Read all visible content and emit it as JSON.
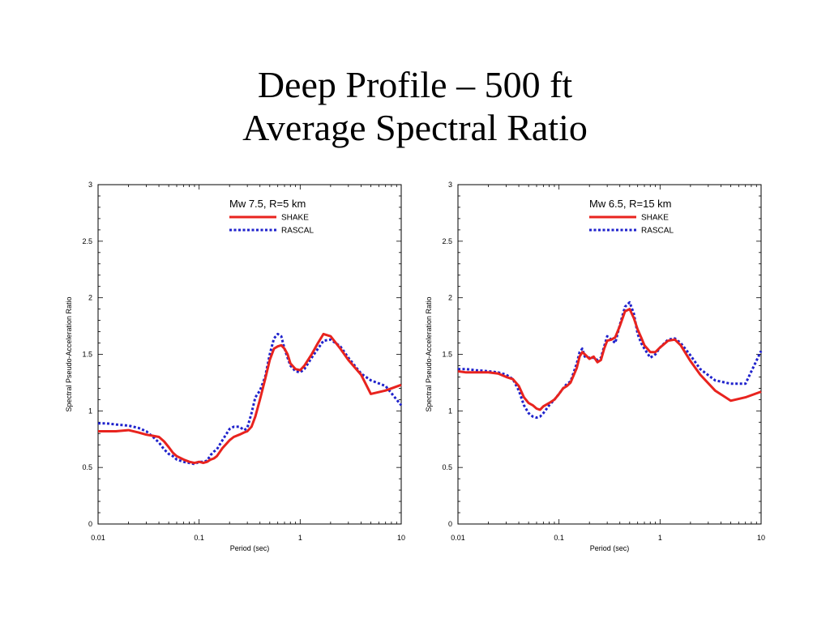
{
  "slide": {
    "title_line1": "Deep Profile – 500 ft",
    "title_line2": "Average Spectral Ratio"
  },
  "chart_data": [
    {
      "type": "line",
      "title": "Mw 7.5, R=5 km",
      "xlabel": "Period (sec)",
      "ylabel": "Spectral Pseudo-Acceleration Ratio",
      "xscale": "log",
      "xlim": [
        0.01,
        10
      ],
      "ylim": [
        0,
        3
      ],
      "xticks": [
        0.01,
        0.1,
        1,
        10
      ],
      "xtick_labels": [
        "0.01",
        "0.1",
        "1",
        "10"
      ],
      "yticks": [
        0,
        0.5,
        1,
        1.5,
        2,
        2.5,
        3
      ],
      "ytick_labels": [
        "0",
        "0.5",
        "1",
        "1.5",
        "2",
        "2.5",
        "3"
      ],
      "legend_position": "top-right",
      "grid": false,
      "series": [
        {
          "name": "SHAKE",
          "color": "#e8231e",
          "style": "solid",
          "x": [
            0.01,
            0.012,
            0.015,
            0.02,
            0.025,
            0.03,
            0.035,
            0.04,
            0.045,
            0.05,
            0.055,
            0.06,
            0.07,
            0.08,
            0.09,
            0.1,
            0.11,
            0.12,
            0.13,
            0.14,
            0.15,
            0.17,
            0.2,
            0.22,
            0.25,
            0.28,
            0.3,
            0.33,
            0.36,
            0.4,
            0.45,
            0.5,
            0.55,
            0.6,
            0.65,
            0.7,
            0.75,
            0.8,
            0.9,
            1.0,
            1.1,
            1.3,
            1.5,
            1.7,
            2.0,
            2.5,
            3.0,
            4.0,
            5.0,
            7.0,
            10.0
          ],
          "y": [
            0.82,
            0.82,
            0.82,
            0.83,
            0.81,
            0.79,
            0.78,
            0.77,
            0.73,
            0.68,
            0.63,
            0.6,
            0.57,
            0.55,
            0.54,
            0.55,
            0.54,
            0.55,
            0.57,
            0.58,
            0.6,
            0.67,
            0.74,
            0.77,
            0.79,
            0.81,
            0.82,
            0.86,
            0.95,
            1.1,
            1.28,
            1.45,
            1.55,
            1.57,
            1.58,
            1.55,
            1.5,
            1.42,
            1.37,
            1.36,
            1.4,
            1.5,
            1.6,
            1.68,
            1.66,
            1.55,
            1.45,
            1.32,
            1.15,
            1.18,
            1.23
          ]
        },
        {
          "name": "RASCAL",
          "color": "#1f22cc",
          "style": "dotted",
          "x": [
            0.01,
            0.012,
            0.015,
            0.02,
            0.025,
            0.03,
            0.035,
            0.04,
            0.045,
            0.05,
            0.055,
            0.06,
            0.07,
            0.08,
            0.09,
            0.1,
            0.11,
            0.12,
            0.13,
            0.14,
            0.15,
            0.17,
            0.2,
            0.22,
            0.25,
            0.28,
            0.3,
            0.33,
            0.36,
            0.4,
            0.45,
            0.5,
            0.55,
            0.6,
            0.65,
            0.7,
            0.75,
            0.8,
            0.9,
            1.0,
            1.1,
            1.3,
            1.5,
            1.7,
            2.0,
            2.5,
            3.0,
            4.0,
            5.0,
            7.0,
            10.0
          ],
          "y": [
            0.89,
            0.89,
            0.88,
            0.87,
            0.85,
            0.82,
            0.77,
            0.72,
            0.66,
            0.62,
            0.6,
            0.57,
            0.55,
            0.54,
            0.53,
            0.55,
            0.55,
            0.56,
            0.61,
            0.64,
            0.66,
            0.74,
            0.84,
            0.86,
            0.86,
            0.83,
            0.85,
            0.98,
            1.12,
            1.18,
            1.3,
            1.5,
            1.64,
            1.68,
            1.66,
            1.55,
            1.47,
            1.4,
            1.35,
            1.34,
            1.37,
            1.47,
            1.55,
            1.62,
            1.63,
            1.57,
            1.47,
            1.33,
            1.27,
            1.22,
            1.05
          ]
        }
      ]
    },
    {
      "type": "line",
      "title": "Mw 6.5, R=15 km",
      "xlabel": "Period (sec)",
      "ylabel": "Spectral Pseudo-Acceleration Ratio",
      "xscale": "log",
      "xlim": [
        0.01,
        10
      ],
      "ylim": [
        0,
        3
      ],
      "xticks": [
        0.01,
        0.1,
        1,
        10
      ],
      "xtick_labels": [
        "0.01",
        "0.1",
        "1",
        "10"
      ],
      "yticks": [
        0,
        0.5,
        1,
        1.5,
        2,
        2.5,
        3
      ],
      "ytick_labels": [
        "0",
        "0.5",
        "1",
        "1.5",
        "2",
        "2.5",
        "3"
      ],
      "legend_position": "top-right",
      "grid": false,
      "series": [
        {
          "name": "SHAKE",
          "color": "#e8231e",
          "style": "solid",
          "x": [
            0.01,
            0.012,
            0.015,
            0.02,
            0.025,
            0.03,
            0.035,
            0.04,
            0.045,
            0.05,
            0.055,
            0.06,
            0.065,
            0.07,
            0.08,
            0.09,
            0.1,
            0.11,
            0.12,
            0.13,
            0.15,
            0.16,
            0.17,
            0.18,
            0.2,
            0.22,
            0.24,
            0.26,
            0.28,
            0.3,
            0.33,
            0.36,
            0.4,
            0.45,
            0.5,
            0.55,
            0.6,
            0.65,
            0.7,
            0.8,
            0.9,
            1.0,
            1.2,
            1.4,
            1.6,
            2.0,
            2.5,
            3.5,
            5.0,
            7.0,
            10.0
          ],
          "y": [
            1.35,
            1.34,
            1.34,
            1.34,
            1.33,
            1.3,
            1.28,
            1.22,
            1.12,
            1.07,
            1.05,
            1.02,
            1.01,
            1.04,
            1.07,
            1.1,
            1.15,
            1.2,
            1.22,
            1.25,
            1.38,
            1.48,
            1.52,
            1.5,
            1.46,
            1.48,
            1.43,
            1.45,
            1.55,
            1.62,
            1.63,
            1.65,
            1.75,
            1.88,
            1.9,
            1.82,
            1.72,
            1.65,
            1.58,
            1.52,
            1.52,
            1.56,
            1.62,
            1.63,
            1.58,
            1.44,
            1.32,
            1.18,
            1.09,
            1.12,
            1.17
          ]
        },
        {
          "name": "RASCAL",
          "color": "#1f22cc",
          "style": "dotted",
          "x": [
            0.01,
            0.012,
            0.015,
            0.02,
            0.025,
            0.03,
            0.035,
            0.04,
            0.045,
            0.05,
            0.055,
            0.06,
            0.065,
            0.07,
            0.08,
            0.09,
            0.1,
            0.11,
            0.12,
            0.13,
            0.15,
            0.16,
            0.17,
            0.18,
            0.2,
            0.22,
            0.24,
            0.26,
            0.28,
            0.3,
            0.33,
            0.36,
            0.4,
            0.45,
            0.5,
            0.55,
            0.6,
            0.65,
            0.7,
            0.8,
            0.9,
            1.0,
            1.2,
            1.4,
            1.6,
            2.0,
            2.5,
            3.5,
            5.0,
            7.0,
            10.0
          ],
          "y": [
            1.37,
            1.37,
            1.36,
            1.35,
            1.34,
            1.32,
            1.28,
            1.18,
            1.05,
            0.98,
            0.95,
            0.94,
            0.95,
            0.98,
            1.05,
            1.1,
            1.15,
            1.2,
            1.24,
            1.26,
            1.42,
            1.52,
            1.55,
            1.48,
            1.47,
            1.47,
            1.45,
            1.47,
            1.57,
            1.66,
            1.63,
            1.6,
            1.76,
            1.92,
            1.96,
            1.86,
            1.68,
            1.6,
            1.55,
            1.47,
            1.5,
            1.56,
            1.63,
            1.64,
            1.6,
            1.49,
            1.37,
            1.27,
            1.24,
            1.24,
            1.53
          ]
        }
      ]
    }
  ]
}
